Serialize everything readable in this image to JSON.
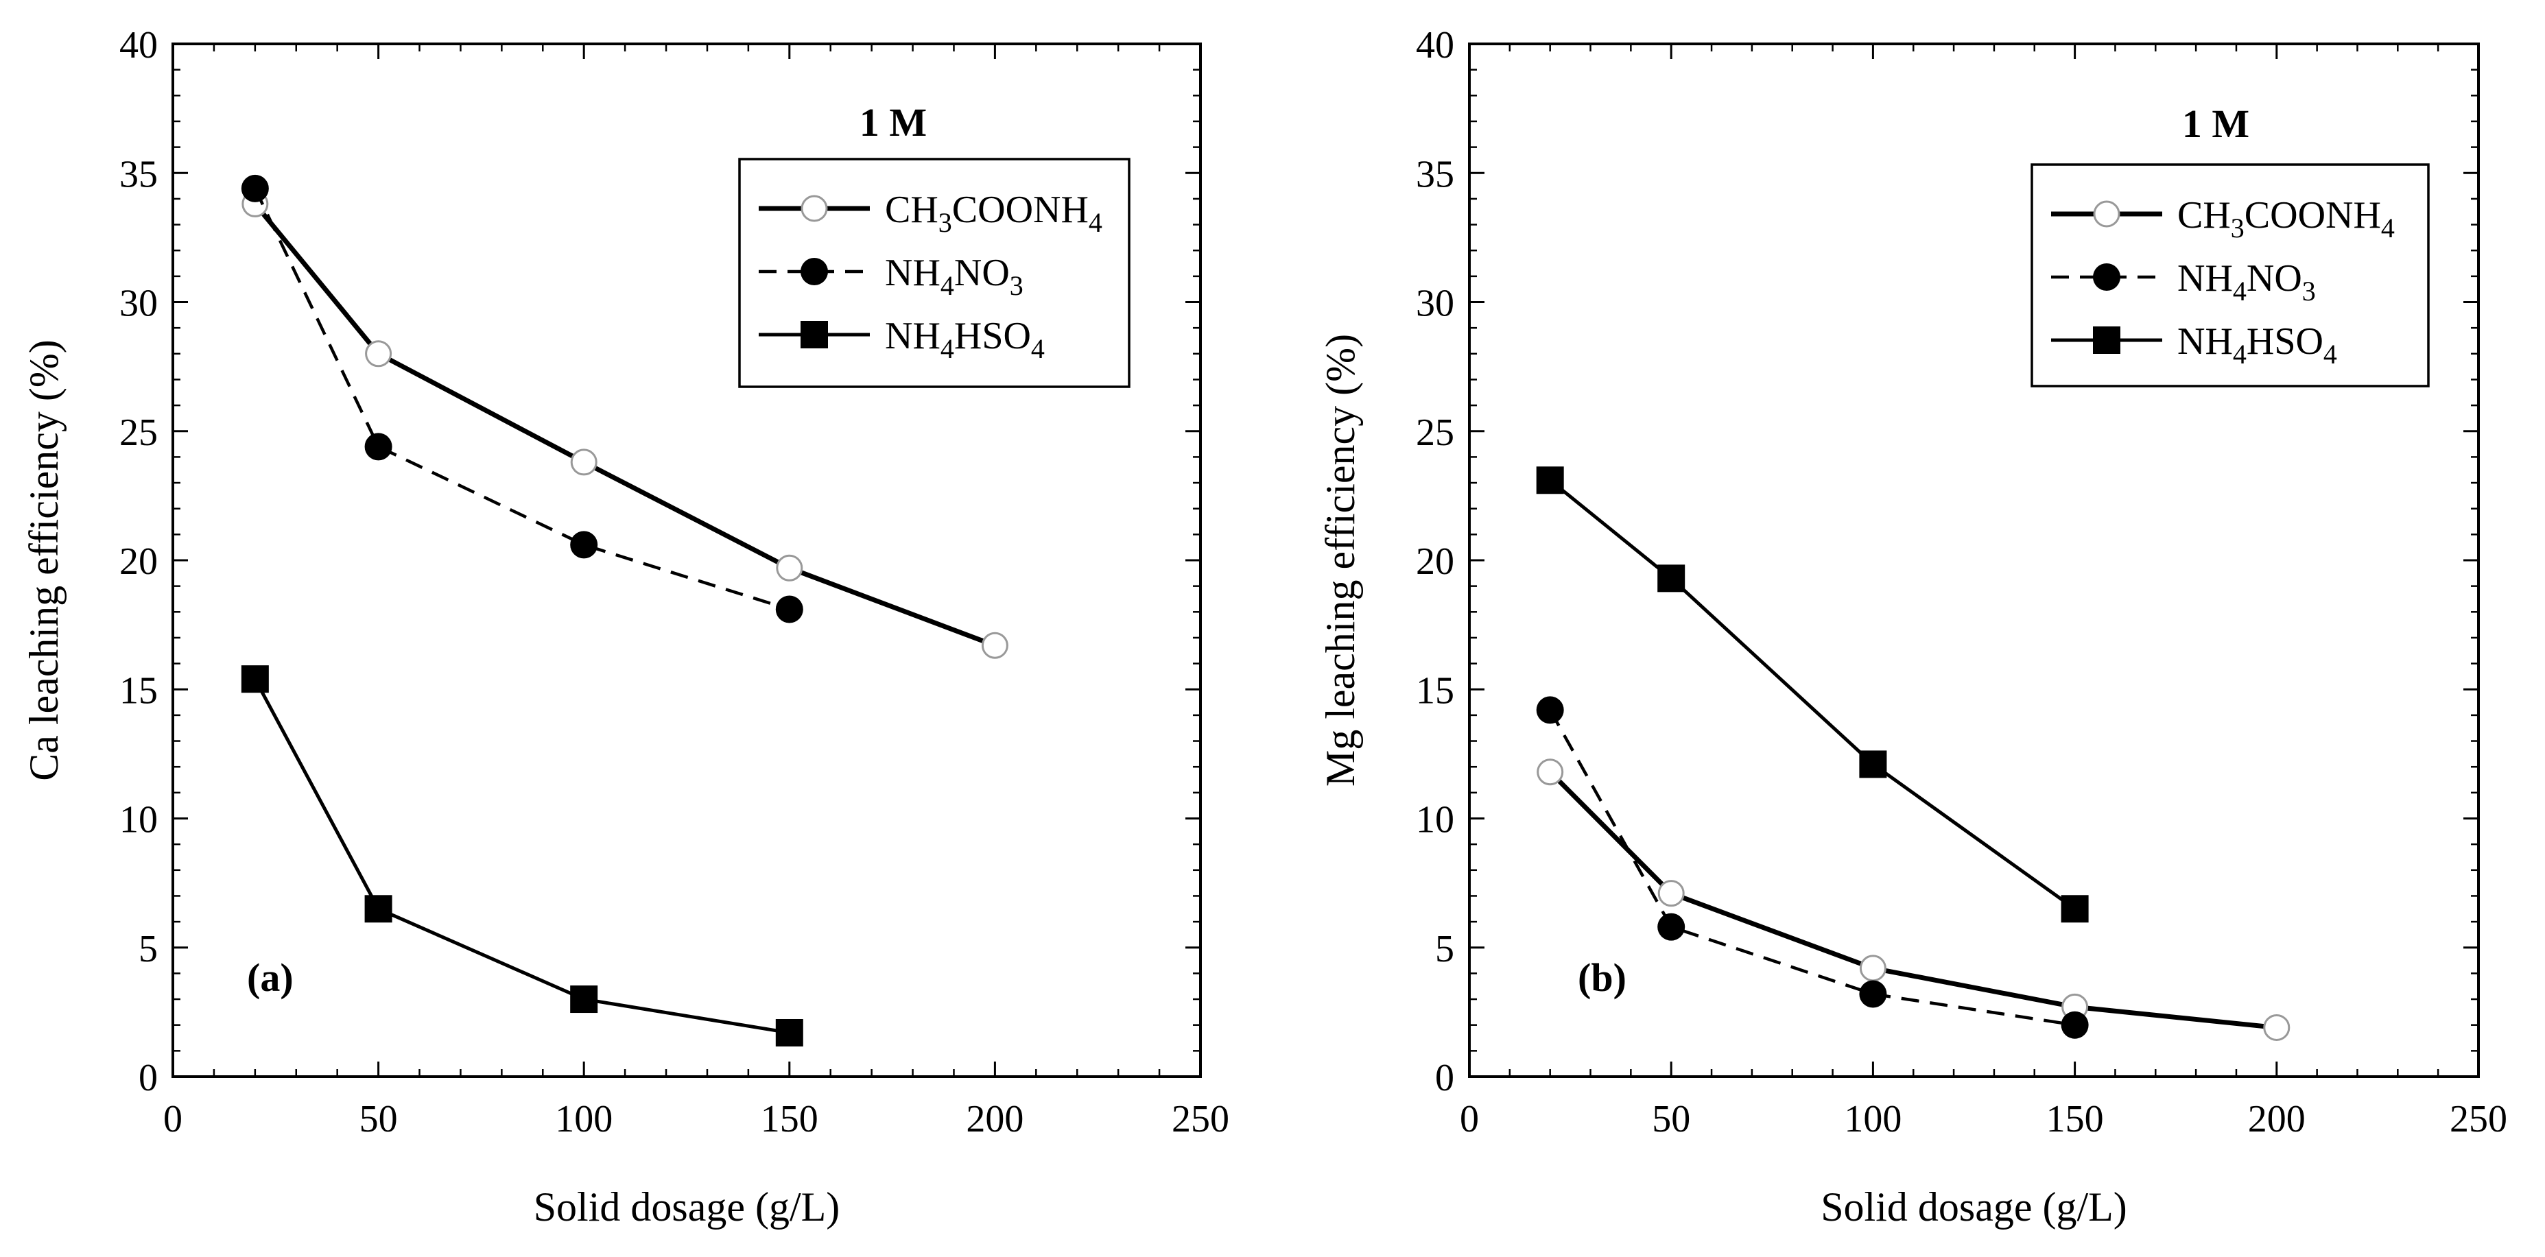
{
  "colors": {
    "axis": "#000000",
    "background": "#ffffff",
    "open_marker_stroke": "#999999"
  },
  "chart_data": [
    {
      "type": "line",
      "panel_label": "(a)",
      "annotation": "1 M",
      "xlabel": "Solid dosage (g/L)",
      "ylabel": "Ca leaching efficiency (%)",
      "xlim": [
        0,
        250
      ],
      "ylim": [
        0,
        40
      ],
      "xticks": [
        0,
        50,
        100,
        150,
        200,
        250
      ],
      "yticks": [
        0,
        5,
        10,
        15,
        20,
        25,
        30,
        35,
        40
      ],
      "grid": false,
      "legend_position": "top-right",
      "series": [
        {
          "name": "CH3COONH4",
          "legend": {
            "parts": [
              "CH",
              "3",
              "COONH",
              "4"
            ]
          },
          "marker": "open-circle",
          "line": "solid-thick",
          "x": [
            20,
            50,
            100,
            150,
            200
          ],
          "y": [
            33.8,
            28.0,
            23.8,
            19.7,
            16.7
          ]
        },
        {
          "name": "NH4NO3",
          "legend": {
            "parts": [
              "NH",
              "4",
              "NO",
              "3"
            ]
          },
          "marker": "filled-circle",
          "line": "dashed",
          "x": [
            20,
            50,
            100,
            150
          ],
          "y": [
            34.4,
            24.4,
            20.6,
            18.1
          ]
        },
        {
          "name": "NH4HSO4",
          "legend": {
            "parts": [
              "NH",
              "4",
              "HSO",
              "4"
            ]
          },
          "marker": "filled-square",
          "line": "solid",
          "x": [
            20,
            50,
            100,
            150
          ],
          "y": [
            15.4,
            6.5,
            3.0,
            1.7
          ]
        }
      ]
    },
    {
      "type": "line",
      "panel_label": "(b)",
      "annotation": "1 M",
      "xlabel": "Solid dosage (g/L)",
      "ylabel": "Mg leaching efficiency (%)",
      "xlim": [
        0,
        250
      ],
      "ylim": [
        0,
        40
      ],
      "xticks": [
        0,
        50,
        100,
        150,
        200,
        250
      ],
      "yticks": [
        0,
        5,
        10,
        15,
        20,
        25,
        30,
        35,
        40
      ],
      "grid": false,
      "legend_position": "top-right",
      "series": [
        {
          "name": "CH3COONH4",
          "legend": {
            "parts": [
              "CH",
              "3",
              "COONH",
              "4"
            ]
          },
          "marker": "open-circle",
          "line": "solid-thick",
          "x": [
            20,
            50,
            100,
            150,
            200
          ],
          "y": [
            11.8,
            7.1,
            4.2,
            2.7,
            1.9
          ]
        },
        {
          "name": "NH4NO3",
          "legend": {
            "parts": [
              "NH",
              "4",
              "NO",
              "3"
            ]
          },
          "marker": "filled-circle",
          "line": "dashed",
          "x": [
            20,
            50,
            100,
            150
          ],
          "y": [
            14.2,
            5.8,
            3.2,
            2.0
          ]
        },
        {
          "name": "NH4HSO4",
          "legend": {
            "parts": [
              "NH",
              "4",
              "HSO",
              "4"
            ]
          },
          "marker": "filled-square",
          "line": "solid",
          "x": [
            20,
            50,
            100,
            150
          ],
          "y": [
            23.1,
            19.3,
            12.1,
            6.5
          ]
        }
      ]
    }
  ]
}
